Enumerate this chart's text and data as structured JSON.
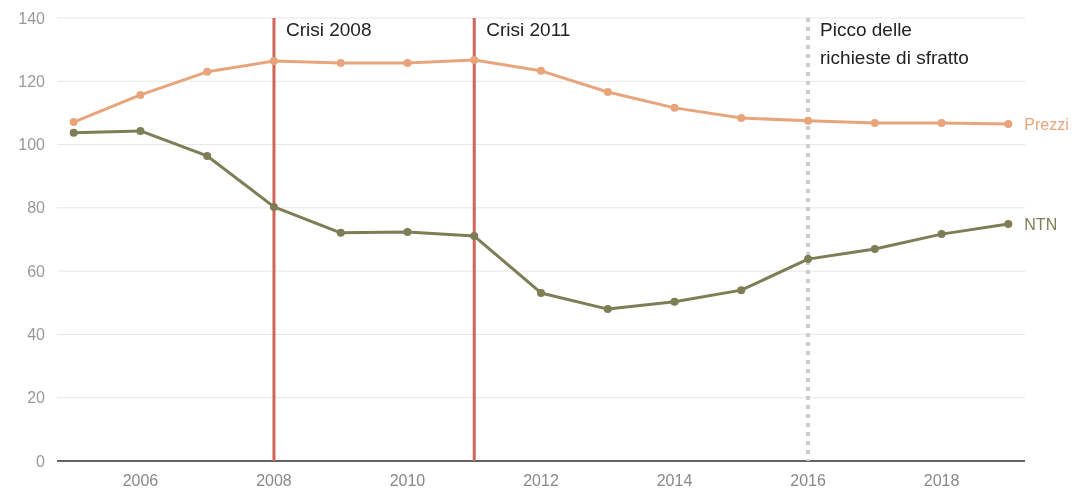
{
  "chart_data": {
    "type": "line",
    "x": [
      2005,
      2006,
      2007,
      2008,
      2009,
      2010,
      2011,
      2012,
      2013,
      2014,
      2015,
      2016,
      2017,
      2018,
      2019
    ],
    "series": [
      {
        "name": "Prezzi",
        "color": "#e8a57c",
        "values": [
          107.1,
          115.7,
          123,
          126.4,
          125.8,
          125.8,
          126.7,
          123.3,
          116.6,
          111.6,
          108.4,
          107.5,
          106.8,
          106.8,
          106.5
        ]
      },
      {
        "name": "NTN",
        "color": "#7e7d55",
        "values": [
          103.7,
          104.3,
          96.4,
          80.3,
          72.1,
          72.4,
          71.1,
          53.1,
          48,
          50.3,
          54,
          63.8,
          67,
          71.7,
          74.9
        ]
      }
    ],
    "xlim": [
      2004.75,
      2019.25
    ],
    "xticks": [
      2006,
      2008,
      2010,
      2012,
      2014,
      2016,
      2018
    ],
    "ylim": [
      0,
      140
    ],
    "yticks": [
      0,
      20,
      40,
      60,
      80,
      100,
      120,
      140
    ],
    "grid": "y",
    "marker": "circle",
    "line_style": "solid",
    "legend": "right",
    "ref_lines": [
      {
        "axis": "x",
        "value": 2008,
        "label": "Crisi 2008",
        "color": "#d0655a",
        "line_style": "solid"
      },
      {
        "axis": "x",
        "value": 2011,
        "label": "Crisi 2011",
        "color": "#d0655a",
        "line_style": "solid"
      },
      {
        "axis": "x",
        "value": 2016,
        "label": "Picco delle\nrichieste di sfratto",
        "color": "#cccccc",
        "line_style": "dotted"
      }
    ]
  }
}
